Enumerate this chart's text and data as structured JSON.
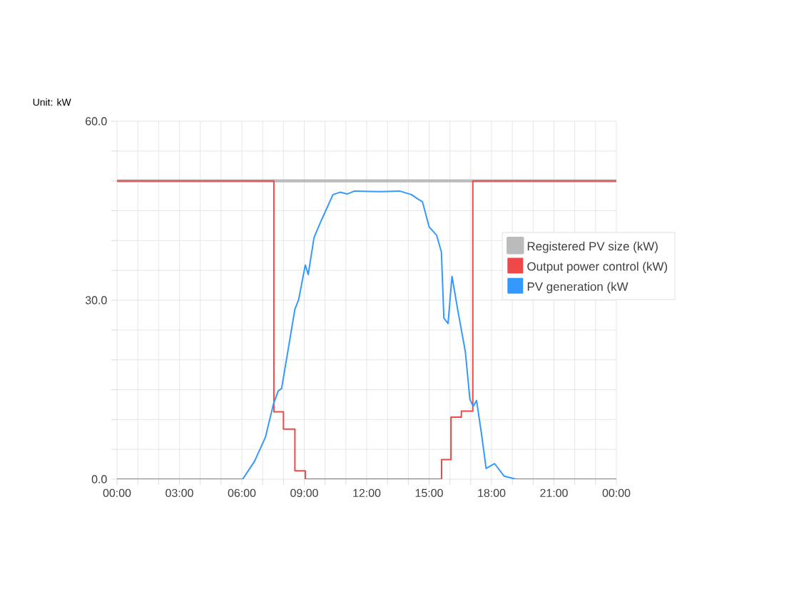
{
  "chart_data": {
    "type": "line",
    "ylabel": "Unit: kW",
    "xlim": [
      0,
      24
    ],
    "ylim": [
      0,
      60
    ],
    "xticks": [
      {
        "value": 0,
        "label": "00:00"
      },
      {
        "value": 1,
        "label": null
      },
      {
        "value": 2,
        "label": null
      },
      {
        "value": 3,
        "label": "03:00"
      },
      {
        "value": 4,
        "label": null
      },
      {
        "value": 5,
        "label": null
      },
      {
        "value": 6,
        "label": "06:00"
      },
      {
        "value": 7,
        "label": null
      },
      {
        "value": 8,
        "label": null
      },
      {
        "value": 9,
        "label": "09:00"
      },
      {
        "value": 10,
        "label": null
      },
      {
        "value": 11,
        "label": null
      },
      {
        "value": 12,
        "label": "12:00"
      },
      {
        "value": 13,
        "label": null
      },
      {
        "value": 14,
        "label": null
      },
      {
        "value": 15,
        "label": "15:00"
      },
      {
        "value": 16,
        "label": null
      },
      {
        "value": 17,
        "label": null
      },
      {
        "value": 18,
        "label": "18:00"
      },
      {
        "value": 19,
        "label": null
      },
      {
        "value": 20,
        "label": null
      },
      {
        "value": 21,
        "label": "21:00"
      },
      {
        "value": 22,
        "label": null
      },
      {
        "value": 23,
        "label": null
      },
      {
        "value": 24,
        "label": "00:00"
      }
    ],
    "yticks": [
      {
        "value": 0,
        "label": "0.0"
      },
      {
        "value": 5,
        "label": null
      },
      {
        "value": 10,
        "label": null
      },
      {
        "value": 15,
        "label": null
      },
      {
        "value": 20,
        "label": null
      },
      {
        "value": 25,
        "label": null
      },
      {
        "value": 30,
        "label": "30.0"
      },
      {
        "value": 35,
        "label": null
      },
      {
        "value": 40,
        "label": null
      },
      {
        "value": 45,
        "label": null
      },
      {
        "value": 50,
        "label": null
      },
      {
        "value": 55,
        "label": null
      },
      {
        "value": 60,
        "label": "60.0"
      }
    ],
    "grid": true,
    "legend": "right",
    "marker": "none",
    "series": [
      {
        "name": "Registered PV size (kW)",
        "color": "#bbbbbb",
        "x": [
          0,
          24
        ],
        "values": [
          50,
          50
        ]
      },
      {
        "name": "Output power control (kW)",
        "color": "#f04848",
        "type": "step",
        "x": [
          0,
          7.54,
          8.0,
          8.55,
          9.05,
          15.6,
          16.05,
          16.55,
          17.1,
          24
        ],
        "values": [
          50,
          11.3,
          8.4,
          1.4,
          0,
          3.3,
          10.4,
          11.4,
          50,
          50
        ]
      },
      {
        "name": "PV generation (kW",
        "color": "#3399ff",
        "x": [
          0,
          6.04,
          6.61,
          7.13,
          7.52,
          7.75,
          7.91,
          8.21,
          8.55,
          8.73,
          9.05,
          9.19,
          9.47,
          9.81,
          10.38,
          10.72,
          11.06,
          11.41,
          12.67,
          13.58,
          14.15,
          14.49,
          14.68,
          15.0,
          15.36,
          15.59,
          15.71,
          15.91,
          16.1,
          16.37,
          16.74,
          16.96,
          17.12,
          17.28,
          17.51,
          17.74,
          18.15,
          18.61,
          19.18,
          24
        ],
        "values": [
          0,
          0,
          3.0,
          7.0,
          12.6,
          14.8,
          15.2,
          21.4,
          28.5,
          30.1,
          35.9,
          34.3,
          40.5,
          43.3,
          47.7,
          48.1,
          47.8,
          48.3,
          48.2,
          48.3,
          47.7,
          46.9,
          46.5,
          42.3,
          40.9,
          38.1,
          27.0,
          26.1,
          34.0,
          28.5,
          21.4,
          13.4,
          12.2,
          13.2,
          7.8,
          1.8,
          2.6,
          0.5,
          0,
          0
        ]
      }
    ]
  }
}
